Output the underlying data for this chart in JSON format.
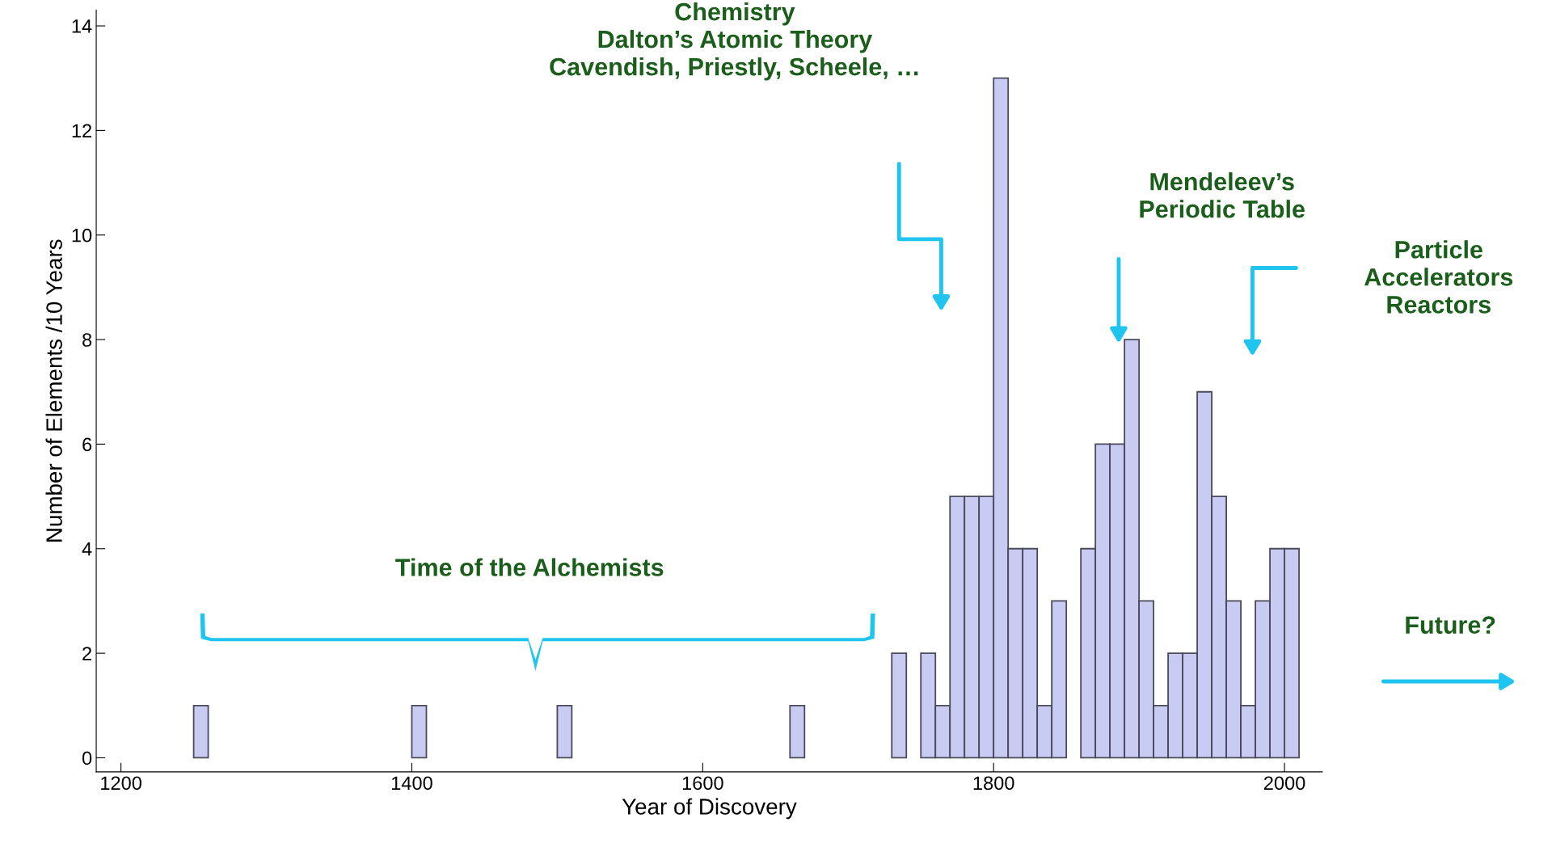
{
  "chart_data": {
    "type": "histogram",
    "xlabel": "Year of Discovery",
    "ylabel": "Number of Elements /10 Years",
    "bins": [
      1250,
      1260,
      1270,
      1280,
      1290,
      1300,
      1310,
      1320,
      1330,
      1340,
      1350,
      1360,
      1370,
      1380,
      1390,
      1400,
      1410,
      1420,
      1430,
      1440,
      1450,
      1460,
      1470,
      1480,
      1490,
      1500,
      1510,
      1520,
      1530,
      1540,
      1550,
      1560,
      1570,
      1580,
      1590,
      1600,
      1610,
      1620,
      1630,
      1640,
      1650,
      1660,
      1670,
      1680,
      1690,
      1700,
      1710,
      1720,
      1730,
      1740,
      1750,
      1760,
      1770,
      1780,
      1790,
      1800,
      1810,
      1820,
      1830,
      1840,
      1850,
      1860,
      1870,
      1880,
      1890,
      1900,
      1910,
      1920,
      1930,
      1940,
      1950,
      1960,
      1970,
      1980,
      1990,
      2000,
      2010
    ],
    "values": [
      1,
      0,
      0,
      0,
      0,
      0,
      0,
      0,
      0,
      0,
      0,
      0,
      0,
      0,
      0,
      1,
      0,
      0,
      0,
      0,
      0,
      0,
      0,
      0,
      0,
      1,
      0,
      0,
      0,
      0,
      0,
      0,
      0,
      0,
      0,
      0,
      0,
      0,
      0,
      0,
      0,
      1,
      0,
      0,
      0,
      0,
      0,
      0,
      2,
      0,
      2,
      1,
      5,
      5,
      5,
      13,
      4,
      4,
      1,
      3,
      0,
      4,
      6,
      6,
      8,
      3,
      1,
      2,
      2,
      7,
      5,
      3,
      1,
      3,
      4,
      4
    ],
    "color": "#c9ccf2",
    "xlim": [
      1183,
      2026
    ],
    "ylim": [
      -0.27,
      14.3
    ],
    "xticks": [
      1200,
      1400,
      1600,
      1800,
      2000
    ],
    "yticks": [
      0,
      2,
      4,
      6,
      8,
      10,
      12,
      14
    ],
    "grid": false,
    "annotations": [
      "Chemistry\nDalton’s Atomic Theory\nCavendish, Priestly, Scheele, …",
      "Mendeleev’s\nPeriodic Table",
      "Particle\nAccelerators\nReactors",
      "Time of the Alchemists",
      "Future?"
    ]
  }
}
